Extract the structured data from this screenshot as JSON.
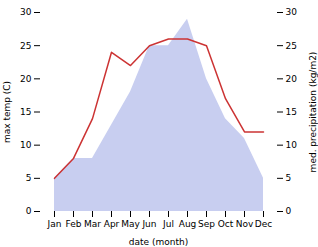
{
  "chart_data": {
    "type": "line",
    "xlabel": "date (month)",
    "ylabel": "max temp (C)",
    "y2label": "med. precipitation (kg/m2)",
    "categories": [
      "Jan",
      "Feb",
      "Mar",
      "Apr",
      "May",
      "Jun",
      "Jul",
      "Aug",
      "Sep",
      "Oct",
      "Nov",
      "Dec"
    ],
    "series": [
      {
        "type": "area",
        "color": "#c8cef0",
        "values": [
          5,
          8,
          8,
          13,
          18,
          25,
          25,
          29,
          20,
          14,
          11,
          5
        ]
      },
      {
        "type": "line",
        "color": "#cc3333",
        "axis": "y2",
        "values": [
          5,
          8,
          14,
          24,
          22,
          25,
          26,
          26,
          25,
          17,
          12,
          12
        ]
      }
    ],
    "ylim": [
      0,
      30
    ],
    "yticks": [
      0,
      5,
      10,
      15,
      20,
      25,
      30
    ],
    "y2lim": [
      0,
      30
    ],
    "y2ticks": [
      0,
      5,
      10,
      15,
      20,
      25,
      30
    ]
  }
}
